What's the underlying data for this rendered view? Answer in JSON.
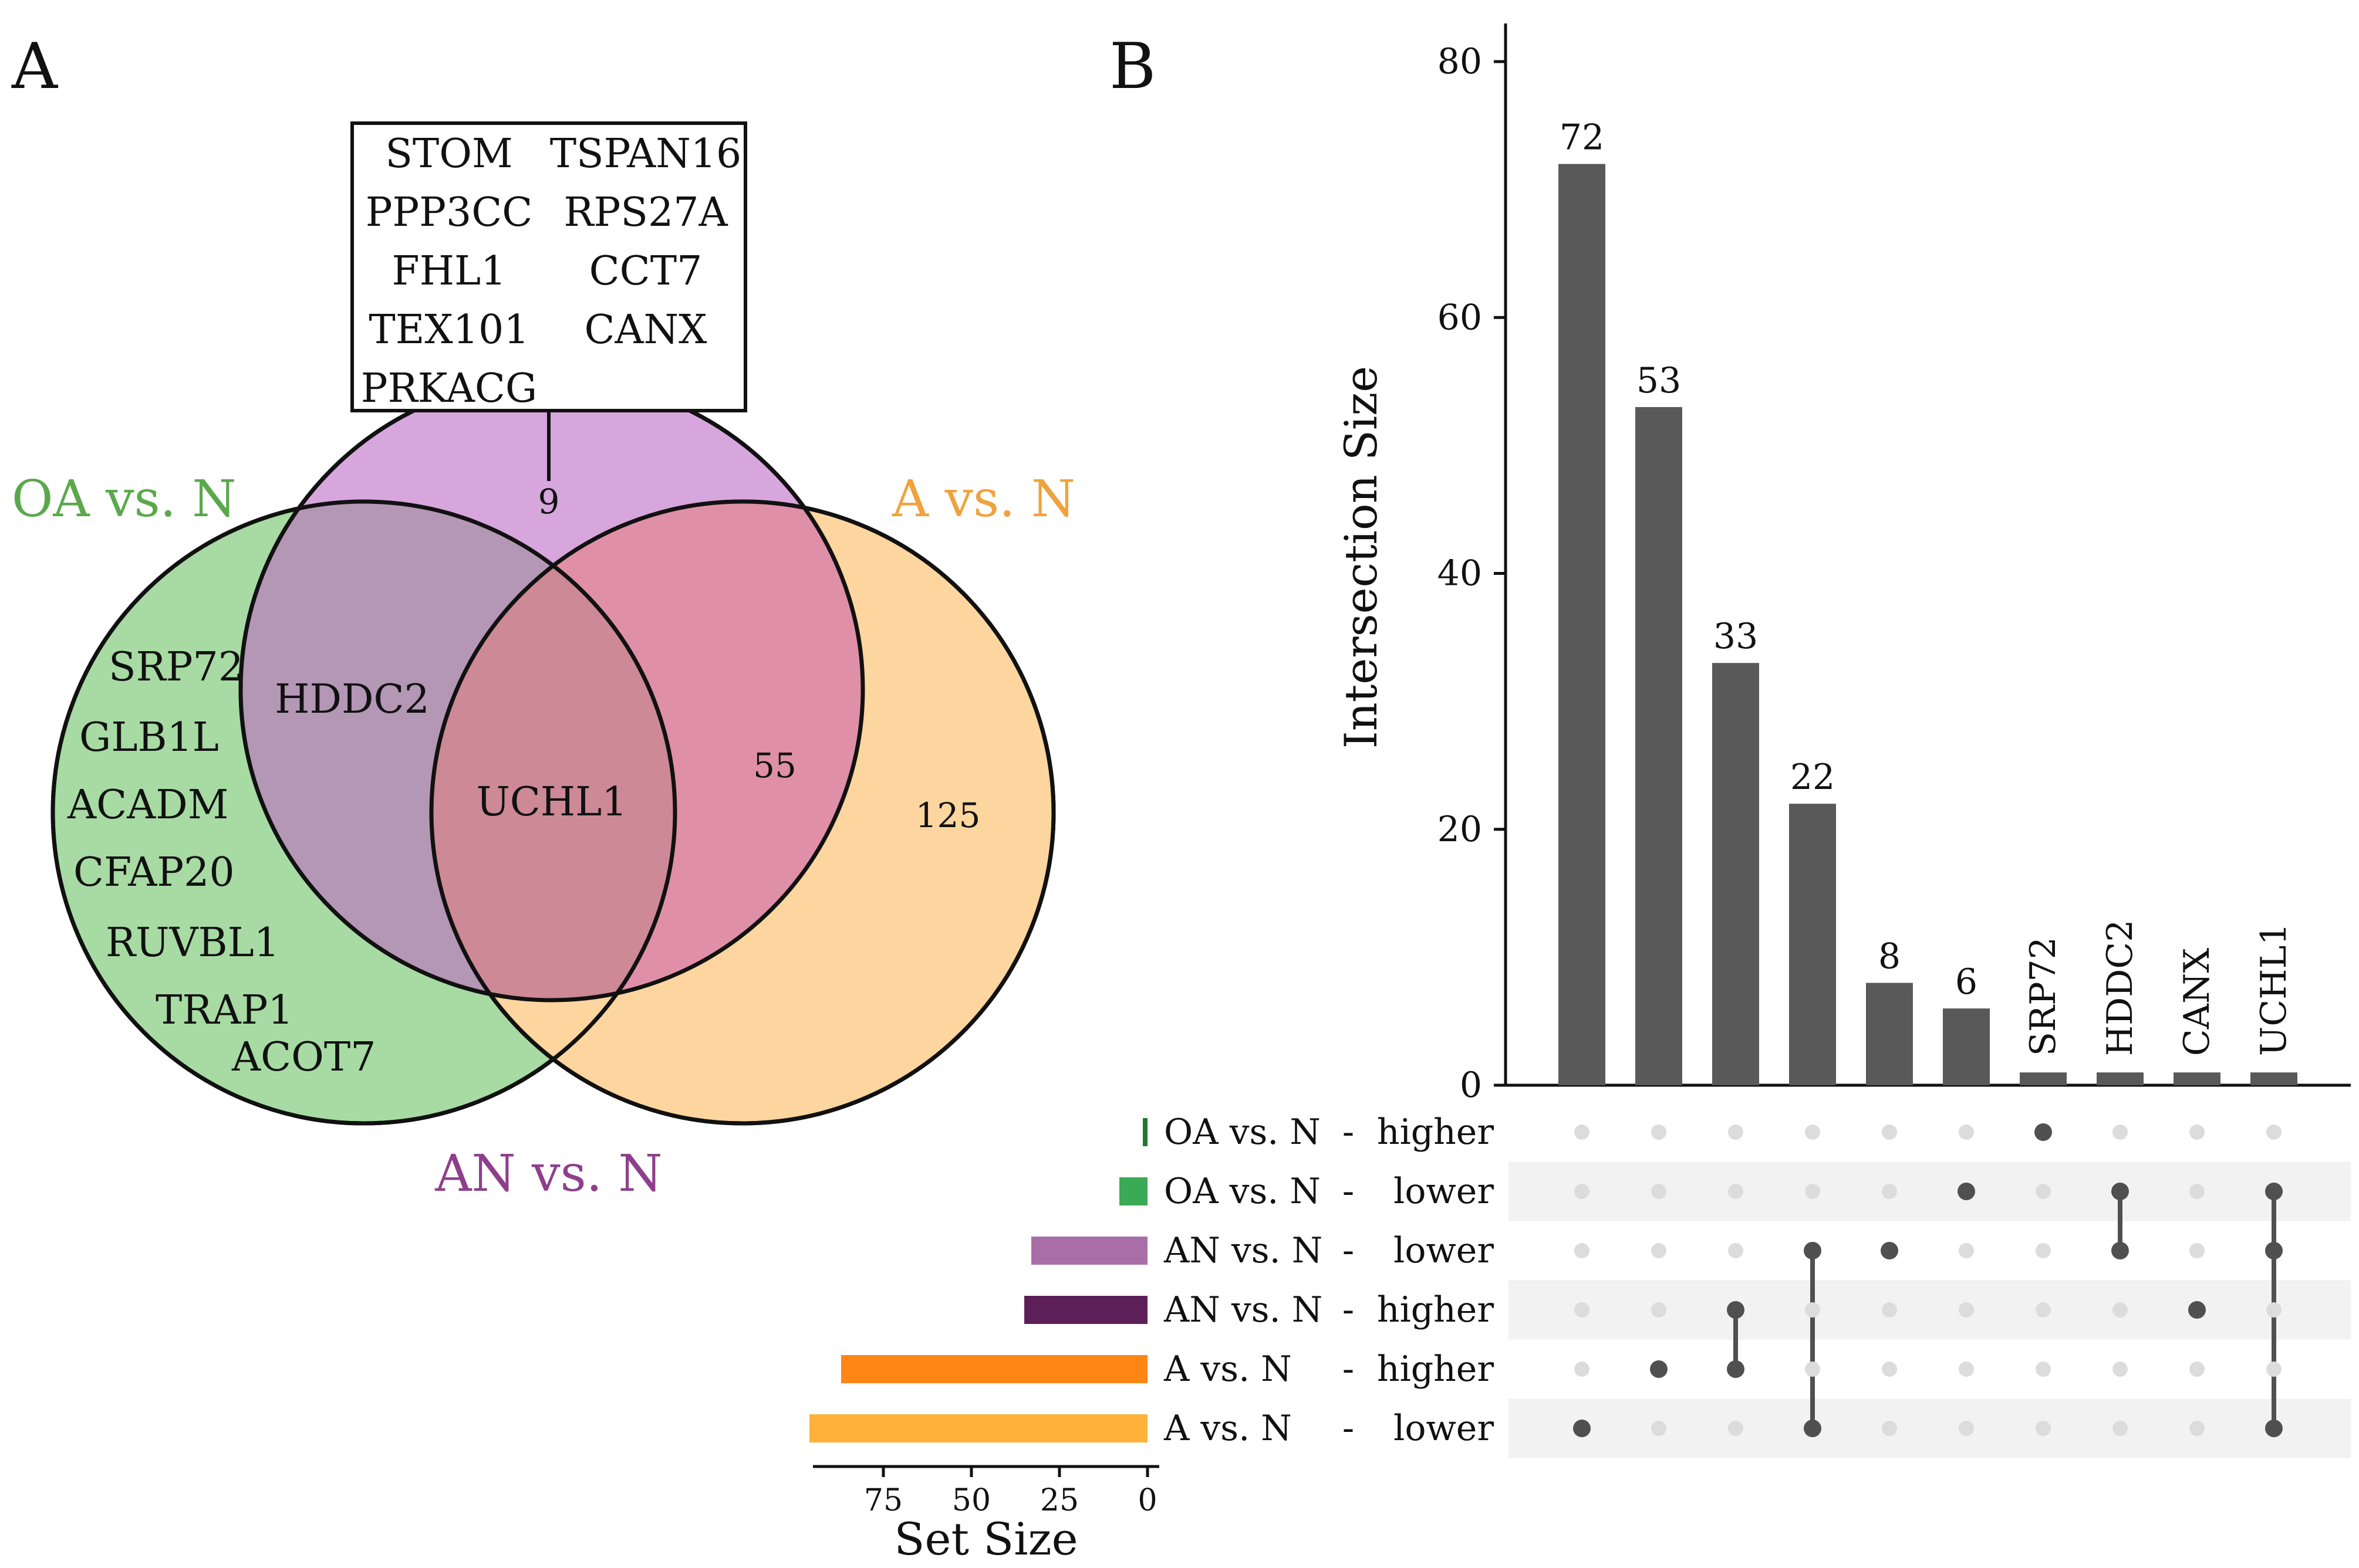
{
  "panel_a": {
    "letter": "A",
    "callout_genes": [
      "STOM",
      "TSPAN16",
      "PPP3CC",
      "RPS27A",
      "FHL1",
      "CCT7",
      "TEX101",
      "CANX",
      "PRKACG"
    ],
    "sets": [
      {
        "key": "oa",
        "label": "OA vs. N",
        "color": "#5aa84b",
        "fill": "#a7dba3"
      },
      {
        "key": "an",
        "label": "AN vs. N",
        "color": "#8e3f8c",
        "fill": "#d7a6dd"
      },
      {
        "key": "a",
        "label": "A vs. N",
        "color": "#f0a23d",
        "fill": "#fdd59f"
      }
    ],
    "region_counts": {
      "an_only": "9",
      "an_a": "55",
      "a_only": "125"
    },
    "oa_only_genes": [
      "SRP72",
      "GLB1L",
      "ACADM",
      "CFAP20",
      "RUVBL1",
      "TRAP1",
      "ACOT7"
    ],
    "oa_an_gene": "HDDC2",
    "all_three_gene": "UCHL1"
  },
  "chart_data": {
    "type": "bar",
    "panel_letter": "B",
    "title": "",
    "ylabel": "Intersection Size",
    "ylim": [
      0,
      80
    ],
    "yticks": [
      "0",
      "20",
      "40",
      "60",
      "80"
    ],
    "intersections": [
      {
        "label": "72",
        "value": 72,
        "members": [
          5
        ]
      },
      {
        "label": "53",
        "value": 53,
        "members": [
          4
        ]
      },
      {
        "label": "33",
        "value": 33,
        "members": [
          3,
          4
        ]
      },
      {
        "label": "22",
        "value": 22,
        "members": [
          2,
          5
        ]
      },
      {
        "label": "8",
        "value": 8,
        "members": [
          2
        ]
      },
      {
        "label": "6",
        "value": 6,
        "members": [
          1
        ]
      },
      {
        "label": "SRP72",
        "value": 1,
        "members": [
          0
        ]
      },
      {
        "label": "HDDC2",
        "value": 1,
        "members": [
          1,
          2
        ]
      },
      {
        "label": "CANX",
        "value": 1,
        "members": [
          3
        ]
      },
      {
        "label": "UCHL1",
        "value": 1,
        "members": [
          1,
          2,
          5
        ]
      }
    ],
    "sets": [
      {
        "name": "OA vs. N",
        "direction": "higher",
        "size": 1,
        "color": "#1e7a2e"
      },
      {
        "name": "OA vs. N",
        "direction": "lower",
        "size": 8,
        "color": "#3aaa55"
      },
      {
        "name": "AN vs. N",
        "direction": "lower",
        "size": 33,
        "color": "#a96ea8"
      },
      {
        "name": "AN vs. N",
        "direction": "higher",
        "size": 35,
        "color": "#5c1f58"
      },
      {
        "name": "A vs. N",
        "direction": "higher",
        "size": 87,
        "color": "#ff8515"
      },
      {
        "name": "A vs. N",
        "direction": "lower",
        "size": 96,
        "color": "#ffb13a"
      }
    ],
    "separator": "-",
    "set_size_label": "Set Size",
    "set_size_ticks": [
      75,
      50,
      25,
      0
    ],
    "set_size_max": 100,
    "bar_color": "#595959",
    "dot_active_color": "#505050",
    "dot_inactive_color": "#dcdcdc"
  }
}
